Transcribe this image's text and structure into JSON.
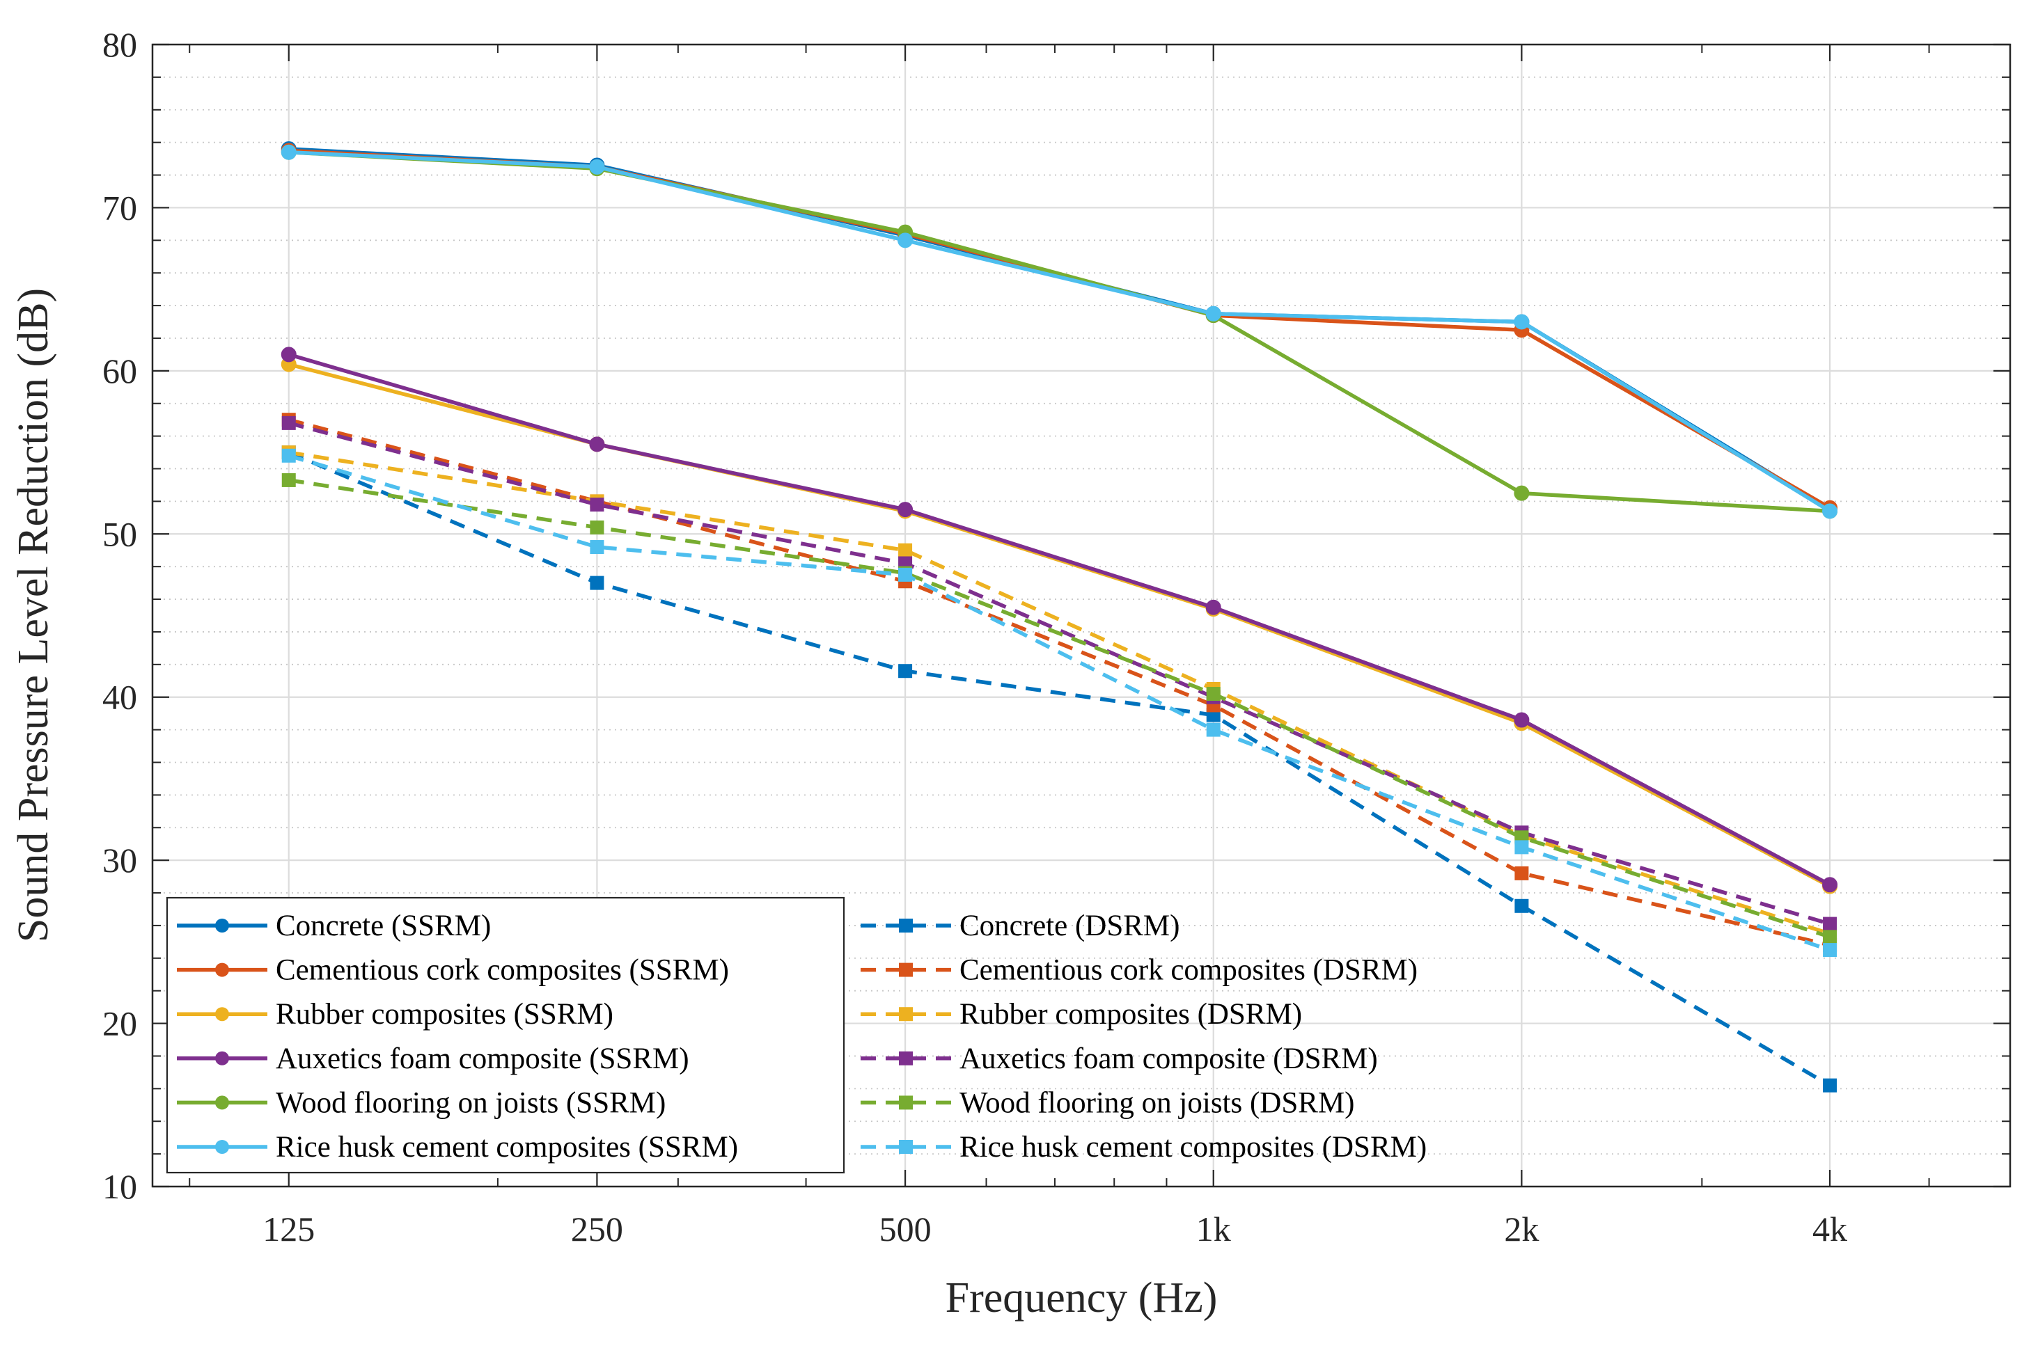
{
  "chart_data": {
    "type": "line",
    "xlabel": "Frequency (Hz)",
    "ylabel": "Sound Pressure Level Reduction (dB)",
    "x_scale": "log",
    "categories": [
      "125",
      "250",
      "500",
      "1k",
      "2k",
      "4k"
    ],
    "x": [
      125,
      250,
      500,
      1000,
      2000,
      4000
    ],
    "xlim": [
      92,
      6000
    ],
    "ylim": [
      10,
      80
    ],
    "yticks": [
      10,
      20,
      30,
      40,
      50,
      60,
      70,
      80
    ],
    "yticks_labels": [
      "10",
      "20",
      "30",
      "40",
      "50",
      "60",
      "70",
      "80"
    ],
    "grid": "major solid, minor dotted",
    "legend_position": "bottom-left",
    "series": [
      {
        "name": "Concrete (SSRM)",
        "color": "#0072BD",
        "style": "solid",
        "marker": "circle",
        "values": [
          73.6,
          72.6,
          68.3,
          63.5,
          63.0,
          51.5
        ]
      },
      {
        "name": "Cementious cork composites (SSRM)",
        "color": "#D95319",
        "style": "solid",
        "marker": "circle",
        "values": [
          73.5,
          72.5,
          68.4,
          63.4,
          62.5,
          51.6
        ]
      },
      {
        "name": "Rubber composites (SSRM)",
        "color": "#EDB120",
        "style": "solid",
        "marker": "circle",
        "values": [
          60.4,
          55.5,
          51.4,
          45.4,
          38.4,
          28.4
        ]
      },
      {
        "name": "Auxetics foam composite (SSRM)",
        "color": "#7E2F8E",
        "style": "solid",
        "marker": "circle",
        "values": [
          61.0,
          55.5,
          51.5,
          45.5,
          38.6,
          28.5
        ]
      },
      {
        "name": "Wood flooring on joists (SSRM)",
        "color": "#77AC30",
        "style": "solid",
        "marker": "circle",
        "values": [
          73.4,
          72.4,
          68.5,
          63.4,
          52.5,
          51.4
        ]
      },
      {
        "name": "Rice husk cement composites (SSRM)",
        "color": "#4DBEEE",
        "style": "solid",
        "marker": "circle",
        "values": [
          73.4,
          72.5,
          68.0,
          63.5,
          63.0,
          51.4
        ]
      },
      {
        "name": "Concrete (DSRM)",
        "color": "#0072BD",
        "style": "dashed",
        "marker": "square",
        "values": [
          55.0,
          47.0,
          41.6,
          38.9,
          27.2,
          16.2
        ]
      },
      {
        "name": "Cementious cork composites (DSRM)",
        "color": "#D95319",
        "style": "dashed",
        "marker": "square",
        "values": [
          57.0,
          52.0,
          47.1,
          39.5,
          29.2,
          24.8
        ]
      },
      {
        "name": "Rubber composites (DSRM)",
        "color": "#EDB120",
        "style": "dashed",
        "marker": "square",
        "values": [
          55.0,
          52.0,
          49.0,
          40.5,
          31.5,
          25.5
        ]
      },
      {
        "name": "Auxetics foam composite (DSRM)",
        "color": "#7E2F8E",
        "style": "dashed",
        "marker": "square",
        "values": [
          56.8,
          51.8,
          48.2,
          40.0,
          31.7,
          26.1
        ]
      },
      {
        "name": "Wood flooring on joists (DSRM)",
        "color": "#77AC30",
        "style": "dashed",
        "marker": "square",
        "values": [
          53.3,
          50.4,
          47.6,
          40.2,
          31.4,
          25.3
        ]
      },
      {
        "name": "Rice husk cement composites (DSRM)",
        "color": "#4DBEEE",
        "style": "dashed",
        "marker": "square",
        "values": [
          54.8,
          49.2,
          47.5,
          38.0,
          30.8,
          24.5
        ]
      }
    ]
  }
}
